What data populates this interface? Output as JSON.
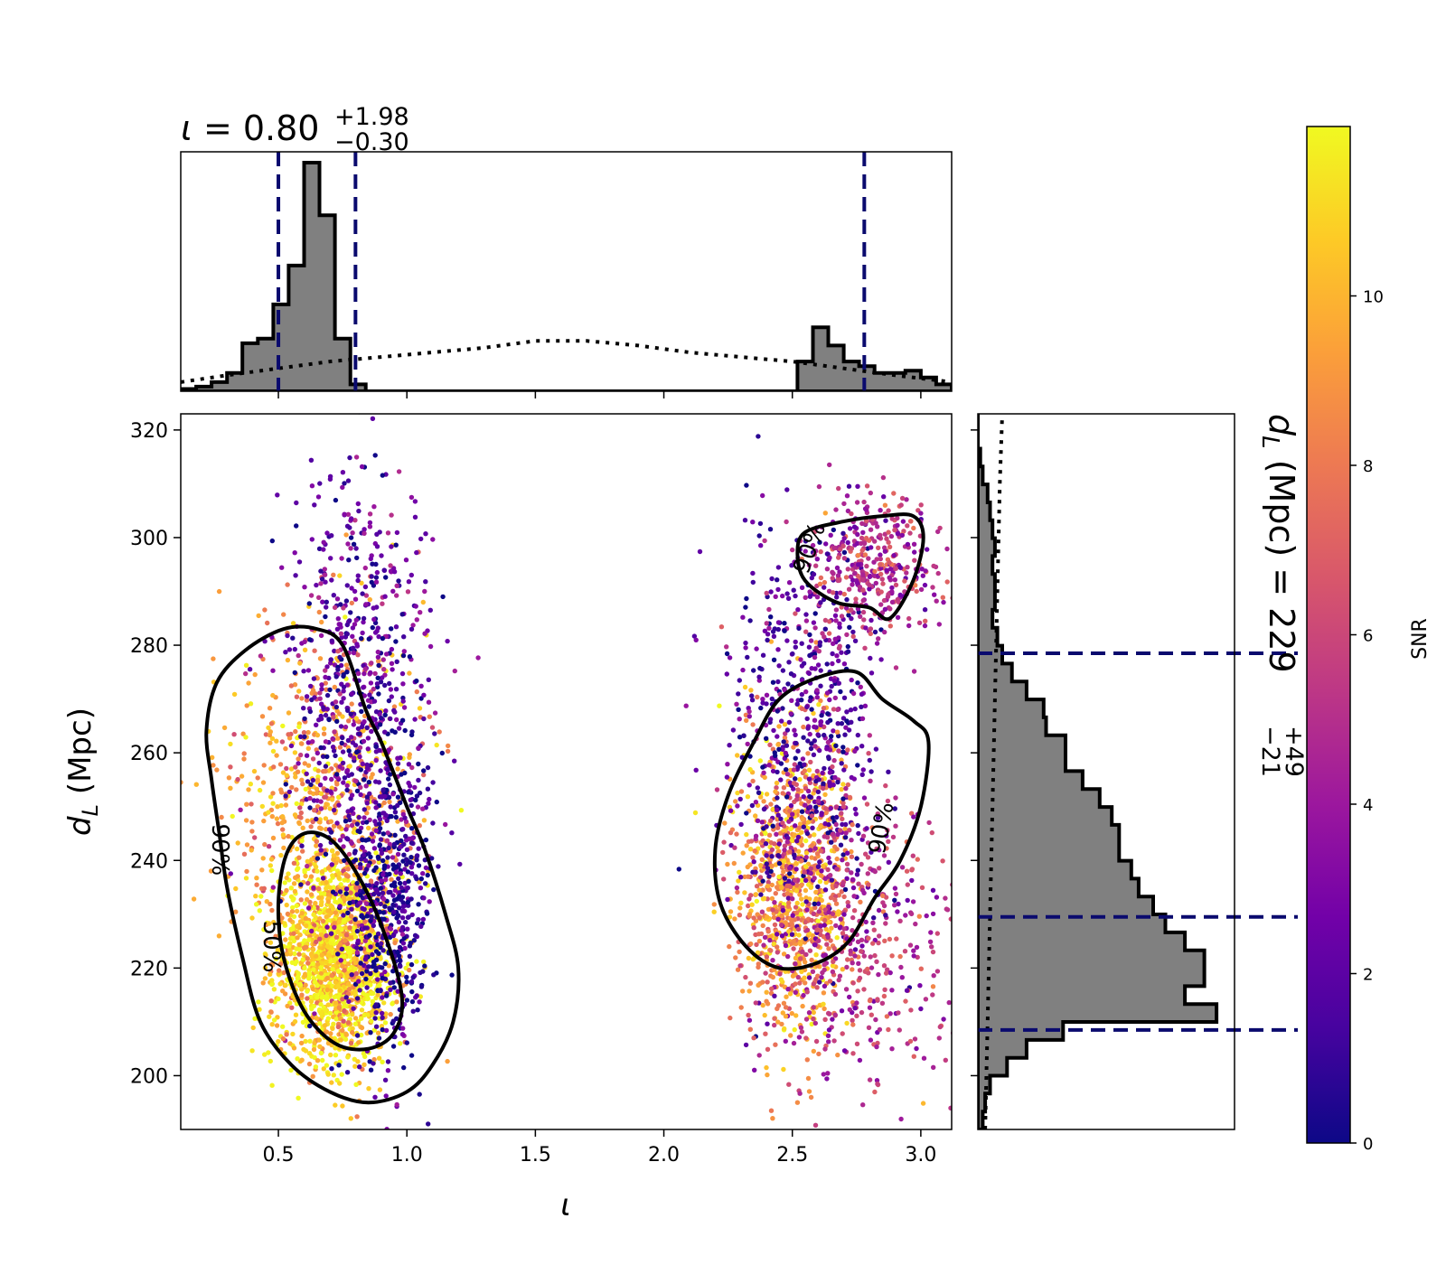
{
  "chart_data": {
    "type": "scatter",
    "x_label": "ι",
    "y_label": "d_L (Mpc)",
    "x_label_parts": {
      "main": "ι"
    },
    "y_label_parts": {
      "sym": "d",
      "sub": "L",
      "unit": "(Mpc)"
    },
    "xlim": [
      0.12,
      3.12
    ],
    "ylim": [
      190,
      323
    ],
    "x_ticks": [
      0.5,
      1.0,
      1.5,
      2.0,
      2.5,
      3.0
    ],
    "x_tick_labels": [
      "0.5",
      "1.0",
      "1.5",
      "2.0",
      "2.5",
      "3.0"
    ],
    "y_ticks": [
      200,
      220,
      240,
      260,
      280,
      300,
      320
    ],
    "y_tick_labels": [
      "200",
      "220",
      "240",
      "260",
      "280",
      "300",
      "320"
    ],
    "grid": false,
    "colorbar": {
      "label": "SNR",
      "range": [
        0,
        12
      ],
      "ticks": [
        0,
        2,
        4,
        6,
        8,
        10
      ],
      "tick_labels": [
        "0",
        "2",
        "4",
        "6",
        "8",
        "10"
      ],
      "colormap": [
        "#0d0887",
        "#46039f",
        "#7201a8",
        "#9c179e",
        "#bd3786",
        "#d8576b",
        "#ed7953",
        "#fb9f3a",
        "#fdca26",
        "#f0f921"
      ]
    },
    "point_clusters": [
      {
        "name": "cluster_a",
        "x_center": 0.72,
        "x_sd": 0.12,
        "y_center": 222,
        "y_sd": 10,
        "count": 1500,
        "snr_center": 11
      },
      {
        "name": "cluster_b",
        "x_center": 0.68,
        "x_sd": 0.2,
        "y_center": 252,
        "y_sd": 16,
        "count": 600,
        "snr_center": 9
      },
      {
        "name": "cluster_c",
        "x_center": 0.82,
        "x_sd": 0.14,
        "y_center": 270,
        "y_sd": 22,
        "count": 700,
        "snr_center": 2
      },
      {
        "name": "cluster_d",
        "x_center": 0.93,
        "x_sd": 0.08,
        "y_center": 232,
        "y_sd": 15,
        "count": 500,
        "snr_center": 1
      },
      {
        "name": "cluster_e",
        "x_center": 2.5,
        "x_sd": 0.11,
        "y_center": 236,
        "y_sd": 14,
        "count": 900,
        "snr_center": 9
      },
      {
        "name": "cluster_f",
        "x_center": 2.55,
        "x_sd": 0.15,
        "y_center": 265,
        "y_sd": 17,
        "count": 600,
        "snr_center": 2
      },
      {
        "name": "cluster_g",
        "x_center": 2.82,
        "x_sd": 0.13,
        "y_center": 295,
        "y_sd": 7,
        "count": 400,
        "snr_center": 5
      },
      {
        "name": "cluster_h",
        "x_center": 2.72,
        "x_sd": 0.2,
        "y_center": 225,
        "y_sd": 14,
        "count": 500,
        "snr_center": 5
      }
    ],
    "contours": [
      {
        "label": "90%",
        "label_pos": [
          0.27,
          242
        ],
        "label_angle": 90,
        "points": [
          [
            0.65,
            283
          ],
          [
            0.75,
            280
          ],
          [
            0.84,
            268
          ],
          [
            0.9,
            262
          ],
          [
            1.0,
            250
          ],
          [
            1.07,
            242
          ],
          [
            1.15,
            230
          ],
          [
            1.2,
            220
          ],
          [
            1.18,
            210
          ],
          [
            1.1,
            202
          ],
          [
            1.0,
            197
          ],
          [
            0.85,
            195
          ],
          [
            0.7,
            197
          ],
          [
            0.55,
            202
          ],
          [
            0.43,
            210
          ],
          [
            0.36,
            222
          ],
          [
            0.3,
            235
          ],
          [
            0.27,
            245
          ],
          [
            0.24,
            255
          ],
          [
            0.22,
            264
          ],
          [
            0.26,
            273
          ],
          [
            0.37,
            279
          ],
          [
            0.52,
            283
          ]
        ]
      },
      {
        "label": "50%",
        "label_pos": [
          0.47,
          224
        ],
        "label_angle": 90,
        "points": [
          [
            0.6,
            245
          ],
          [
            0.7,
            244
          ],
          [
            0.8,
            238
          ],
          [
            0.9,
            228
          ],
          [
            0.98,
            215
          ],
          [
            0.95,
            208
          ],
          [
            0.85,
            205
          ],
          [
            0.72,
            206
          ],
          [
            0.6,
            212
          ],
          [
            0.52,
            222
          ],
          [
            0.5,
            232
          ],
          [
            0.53,
            241
          ]
        ]
      },
      {
        "label": "90%",
        "label_pos": [
          2.85,
          246
        ],
        "label_angle": -80,
        "points": [
          [
            2.6,
            274
          ],
          [
            2.75,
            275
          ],
          [
            2.85,
            270
          ],
          [
            2.97,
            266
          ],
          [
            3.03,
            262
          ],
          [
            3.0,
            250
          ],
          [
            2.92,
            240
          ],
          [
            2.82,
            233
          ],
          [
            2.72,
            225
          ],
          [
            2.6,
            221
          ],
          [
            2.45,
            220
          ],
          [
            2.32,
            224
          ],
          [
            2.22,
            232
          ],
          [
            2.2,
            242
          ],
          [
            2.25,
            252
          ],
          [
            2.35,
            262
          ],
          [
            2.45,
            270
          ]
        ]
      },
      {
        "label": "90%",
        "label_pos": [
          2.57,
          298
        ],
        "label_angle": -70,
        "points": [
          [
            2.55,
            301
          ],
          [
            2.7,
            303
          ],
          [
            2.85,
            304
          ],
          [
            2.97,
            304
          ],
          [
            3.01,
            300
          ],
          [
            2.97,
            292
          ],
          [
            2.88,
            285
          ],
          [
            2.8,
            287
          ],
          [
            2.67,
            288
          ],
          [
            2.55,
            292
          ],
          [
            2.52,
            297
          ]
        ]
      }
    ],
    "top_histogram": {
      "parameter": "ι",
      "title_symbol": "ι",
      "title_value": "0.80",
      "title_plus": "+1.98",
      "title_minus": "−0.30",
      "bin_edges_start": 0.12,
      "bin_width": 0.06,
      "counts": [
        0.01,
        0.02,
        0.04,
        0.08,
        0.21,
        0.23,
        0.38,
        0.55,
        1.0,
        0.77,
        0.23,
        0.03,
        0.0,
        0.0,
        0.0,
        0.0,
        0.0,
        0.0,
        0.0,
        0.0,
        0.0,
        0.0,
        0.0,
        0.0,
        0.0,
        0.0,
        0.0,
        0.0,
        0.0,
        0.0,
        0.0,
        0.0,
        0.0,
        0.0,
        0.0,
        0.0,
        0.0,
        0.0,
        0.0,
        0.0,
        0.13,
        0.28,
        0.2,
        0.13,
        0.11,
        0.08,
        0.08,
        0.09,
        0.06,
        0.03
      ],
      "prior_x": [
        0.12,
        0.3,
        0.5,
        0.7,
        0.9,
        1.1,
        1.3,
        1.5,
        1.7,
        1.9,
        2.1,
        2.3,
        2.5,
        2.7,
        2.9,
        3.12
      ],
      "prior_y": [
        0.04,
        0.07,
        0.1,
        0.13,
        0.15,
        0.17,
        0.19,
        0.22,
        0.22,
        0.2,
        0.17,
        0.15,
        0.13,
        0.1,
        0.07,
        0.04
      ],
      "vlines": [
        0.5,
        0.8,
        2.78
      ]
    },
    "right_histogram": {
      "parameter": "d_L",
      "label_sym": "d",
      "label_sub": "L",
      "label_text": "(Mpc) = 229",
      "label_plus": "+49",
      "label_minus": "−21",
      "bin_edges_start": 190,
      "bin_width": 3.33,
      "counts": [
        0.02,
        0.03,
        0.05,
        0.12,
        0.2,
        0.35,
        0.98,
        0.85,
        0.93,
        0.93,
        0.85,
        0.77,
        0.72,
        0.66,
        0.63,
        0.58,
        0.58,
        0.55,
        0.5,
        0.43,
        0.36,
        0.36,
        0.28,
        0.27,
        0.2,
        0.14,
        0.1,
        0.08,
        0.06,
        0.07,
        0.07,
        0.06,
        0.07,
        0.06,
        0.05,
        0.04,
        0.02,
        0.01,
        0.0,
        0.0
      ],
      "prior_y": [
        190,
        210,
        230,
        250,
        270,
        290,
        310,
        323
      ],
      "prior_x": [
        0.03,
        0.04,
        0.05,
        0.06,
        0.07,
        0.08,
        0.09,
        0.1
      ],
      "hlines": [
        208.5,
        229.5,
        278.5
      ]
    }
  }
}
